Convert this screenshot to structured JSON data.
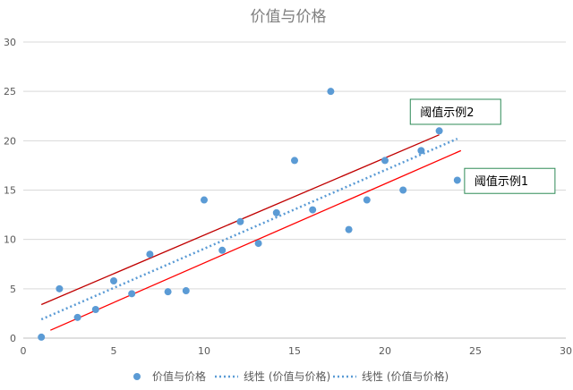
{
  "chart_data": {
    "type": "scatter",
    "title": "价值与价格",
    "xlim": [
      0,
      30
    ],
    "ylim": [
      0,
      30
    ],
    "x_ticks": [
      0,
      5,
      10,
      15,
      20,
      25,
      30
    ],
    "y_ticks": [
      0,
      5,
      10,
      15,
      20,
      25,
      30
    ],
    "grid": "horizontal",
    "legend_position": "bottom",
    "series": [
      {
        "name": "价值与价格",
        "type": "scatter",
        "color": "#5b9bd5",
        "points": [
          [
            1,
            0.1
          ],
          [
            2,
            5.0
          ],
          [
            3,
            2.1
          ],
          [
            4,
            2.9
          ],
          [
            5,
            5.8
          ],
          [
            6,
            4.5
          ],
          [
            7,
            8.5
          ],
          [
            8,
            4.7
          ],
          [
            9,
            4.8
          ],
          [
            10,
            14.0
          ],
          [
            11,
            8.9
          ],
          [
            12,
            11.8
          ],
          [
            13,
            9.6
          ],
          [
            14,
            12.7
          ],
          [
            15,
            18.0
          ],
          [
            16,
            13.0
          ],
          [
            17,
            25.0
          ],
          [
            18,
            11.0
          ],
          [
            19,
            14.0
          ],
          [
            20,
            18.0
          ],
          [
            21,
            15.0
          ],
          [
            22,
            19.0
          ],
          [
            23,
            21.0
          ],
          [
            24,
            16.0
          ]
        ]
      },
      {
        "name": "线性 (价值与价格)",
        "type": "trendline",
        "style": "dotted",
        "color": "#5b9bd5",
        "from": [
          1,
          1.9
        ],
        "to": [
          24,
          20.2
        ]
      },
      {
        "name": "线性 (价值与价格)",
        "type": "trendline",
        "style": "dotted",
        "color": "#5b9bd5",
        "legend_only": true
      }
    ],
    "threshold_lines": [
      {
        "color": "#c00000",
        "from": [
          1,
          3.4
        ],
        "to": [
          23,
          20.6
        ]
      },
      {
        "color": "#ff0000",
        "from": [
          1.5,
          0.8
        ],
        "to": [
          24.2,
          19.0
        ]
      }
    ],
    "annotations": [
      {
        "text": "阈值示例2",
        "anchor": [
          21.4,
          24.2
        ],
        "border_color": "#2e8b57"
      },
      {
        "text": "阈值示例1",
        "anchor": [
          24.4,
          17.2
        ],
        "border_color": "#2e8b57"
      }
    ]
  }
}
